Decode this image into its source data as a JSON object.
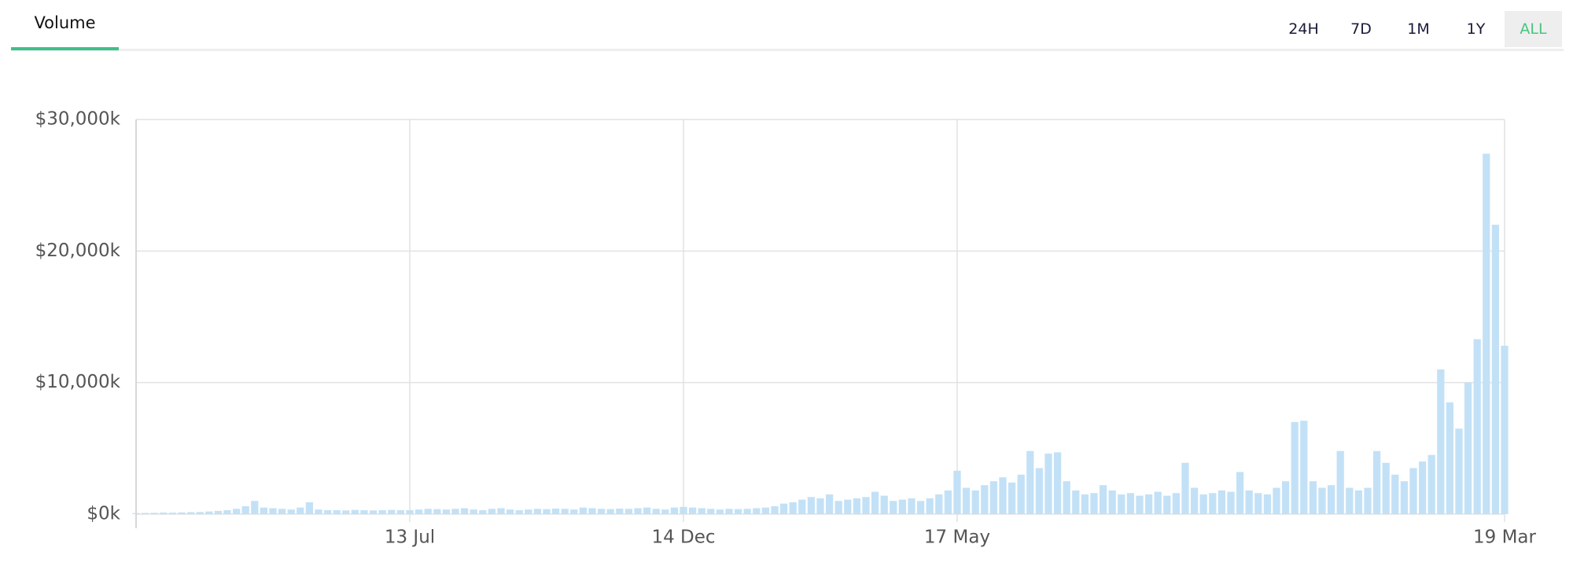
{
  "tabs": [
    "Volume"
  ],
  "ranges": [
    "24H",
    "7D",
    "1M",
    "1Y",
    "ALL"
  ],
  "selected_range": 4,
  "chart_data": {
    "type": "bar",
    "color": "#c3e1f6",
    "grid": true,
    "categories": [
      null,
      null,
      null,
      null,
      null,
      null,
      null,
      null,
      null,
      null,
      null,
      null,
      null,
      null,
      null,
      null,
      null,
      null,
      null,
      null,
      null,
      null,
      null,
      null,
      null,
      null,
      null,
      null,
      null,
      null,
      "13 Jul",
      null,
      null,
      null,
      null,
      null,
      null,
      null,
      null,
      null,
      null,
      null,
      null,
      null,
      null,
      null,
      null,
      null,
      null,
      null,
      null,
      null,
      null,
      null,
      null,
      null,
      null,
      null,
      null,
      null,
      "14 Dec",
      null,
      null,
      null,
      null,
      null,
      null,
      null,
      null,
      null,
      null,
      null,
      null,
      null,
      null,
      null,
      null,
      null,
      null,
      null,
      null,
      null,
      null,
      null,
      null,
      null,
      null,
      null,
      null,
      null,
      "17 May",
      null,
      null,
      null,
      null,
      null,
      null,
      null,
      null,
      null,
      null,
      null,
      null,
      null,
      null,
      null,
      null,
      null,
      null,
      null,
      null,
      null,
      null,
      null,
      null,
      null,
      null,
      null,
      null,
      null,
      null,
      null,
      null,
      null,
      null,
      null,
      null,
      null,
      null,
      null,
      null,
      null,
      null,
      null,
      null,
      null,
      null,
      null,
      null,
      null,
      null,
      null,
      null,
      null,
      null,
      null,
      null,
      null,
      null,
      null,
      "19 Mar"
    ],
    "values": [
      80,
      90,
      100,
      120,
      110,
      130,
      150,
      160,
      200,
      250,
      300,
      400,
      600,
      1000,
      500,
      450,
      400,
      350,
      500,
      900,
      350,
      300,
      300,
      280,
      320,
      300,
      280,
      300,
      320,
      300,
      300,
      350,
      400,
      380,
      350,
      400,
      450,
      350,
      300,
      400,
      450,
      350,
      300,
      350,
      400,
      380,
      420,
      400,
      350,
      500,
      450,
      400,
      380,
      420,
      400,
      450,
      500,
      400,
      350,
      500,
      550,
      500,
      450,
      400,
      350,
      400,
      380,
      400,
      450,
      500,
      600,
      800,
      900,
      1100,
      1300,
      1200,
      1500,
      1000,
      1100,
      1200,
      1300,
      1700,
      1400,
      1000,
      1100,
      1200,
      1000,
      1200,
      1500,
      1800,
      3300,
      2000,
      1800,
      2200,
      2500,
      2800,
      2400,
      3000,
      4800,
      3500,
      4600,
      4700,
      2500,
      1800,
      1500,
      1600,
      2200,
      1800,
      1500,
      1600,
      1400,
      1500,
      1700,
      1400,
      1600,
      3900,
      2000,
      1500,
      1600,
      1800,
      1700,
      3200,
      1800,
      1600,
      1500,
      2000,
      2500,
      7000,
      7100,
      2500,
      2000,
      2200,
      4800,
      2000,
      1800,
      2000,
      4800,
      3900,
      3000,
      2500,
      3500,
      4000,
      4500,
      11000,
      8500,
      6500,
      10000,
      13300,
      27400,
      22000,
      12800
    ],
    "ylim": [
      0,
      30000
    ],
    "yticks": [
      {
        "value": 0,
        "label": "$0k"
      },
      {
        "value": 10000,
        "label": "$10,000k"
      },
      {
        "value": 20000,
        "label": "$20,000k"
      },
      {
        "value": 30000,
        "label": "$30,000k"
      }
    ]
  }
}
